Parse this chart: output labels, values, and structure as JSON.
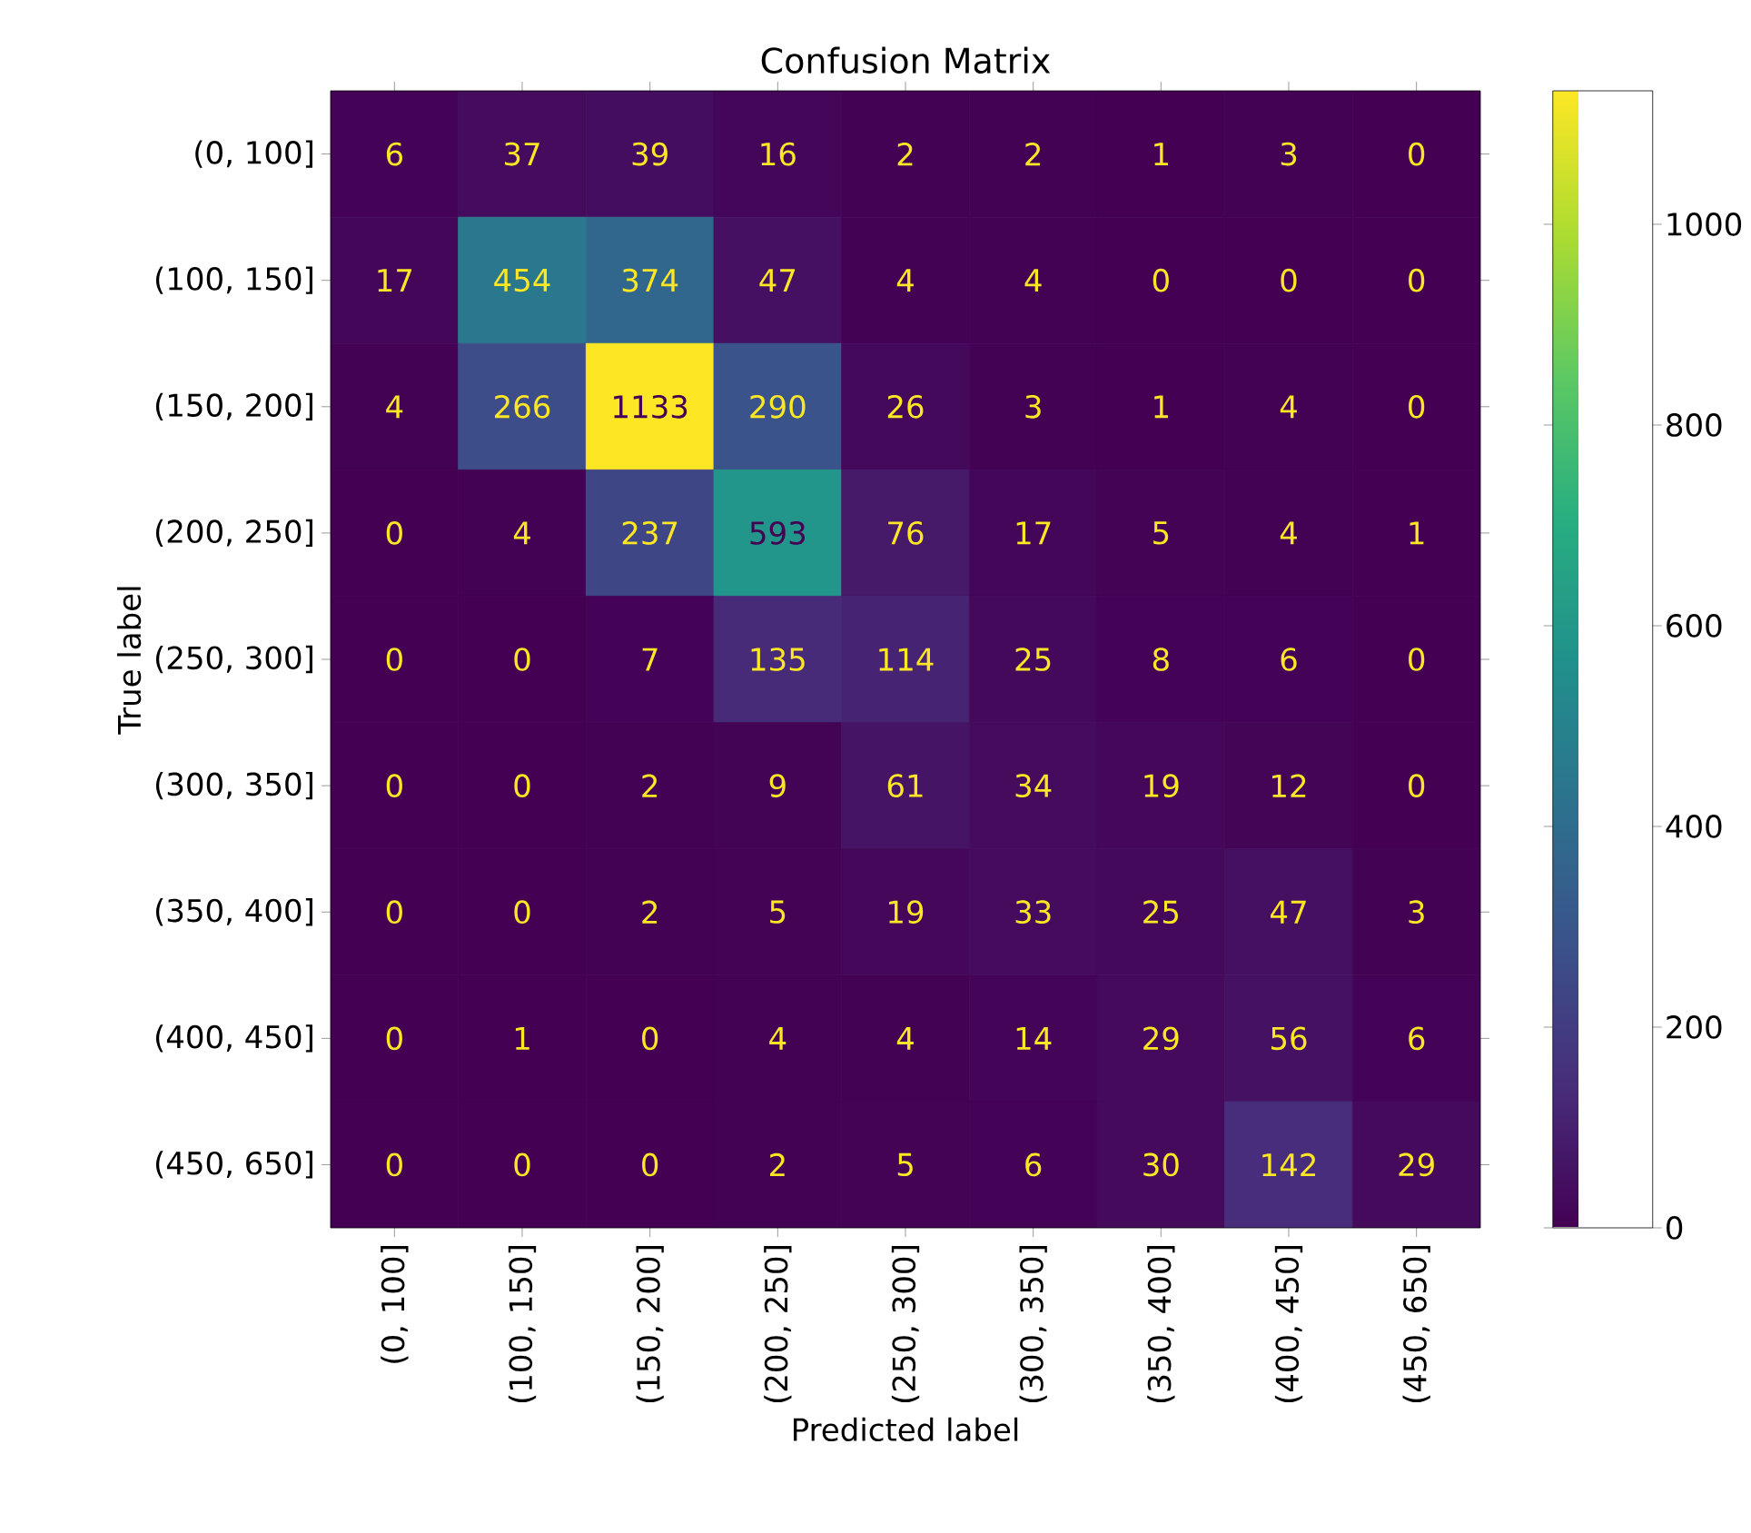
{
  "chart_data": {
    "type": "heatmap",
    "title": "Confusion Matrix",
    "xlabel": "Predicted label",
    "ylabel": "True label",
    "categories": [
      "(0, 100]",
      "(100, 150]",
      "(150, 200]",
      "(200, 250]",
      "(250, 300]",
      "(300, 350]",
      "(350, 400]",
      "(400, 450]",
      "(450, 650]"
    ],
    "y_categories": [
      "(0, 100]",
      "(100, 150]",
      "(150, 200]",
      "(200, 250]",
      "(250, 300]",
      "(300, 350]",
      "(350, 400]",
      "(400, 450]",
      "(450, 650]"
    ],
    "cells": [
      [
        6,
        37,
        39,
        16,
        2,
        2,
        1,
        3,
        0
      ],
      [
        17,
        454,
        374,
        47,
        4,
        4,
        0,
        0,
        0
      ],
      [
        4,
        266,
        1133,
        290,
        26,
        3,
        1,
        4,
        0
      ],
      [
        0,
        4,
        237,
        593,
        76,
        17,
        5,
        4,
        1
      ],
      [
        0,
        0,
        7,
        135,
        114,
        25,
        8,
        6,
        0
      ],
      [
        0,
        0,
        2,
        9,
        61,
        34,
        19,
        12,
        0
      ],
      [
        0,
        0,
        2,
        5,
        19,
        33,
        25,
        47,
        3
      ],
      [
        0,
        1,
        0,
        4,
        4,
        14,
        29,
        56,
        6
      ],
      [
        0,
        0,
        0,
        2,
        5,
        6,
        30,
        142,
        29
      ]
    ],
    "clim": [
      0,
      1133
    ],
    "cticks": [
      0,
      200,
      400,
      600,
      800,
      1000
    ],
    "data_labels": true
  }
}
